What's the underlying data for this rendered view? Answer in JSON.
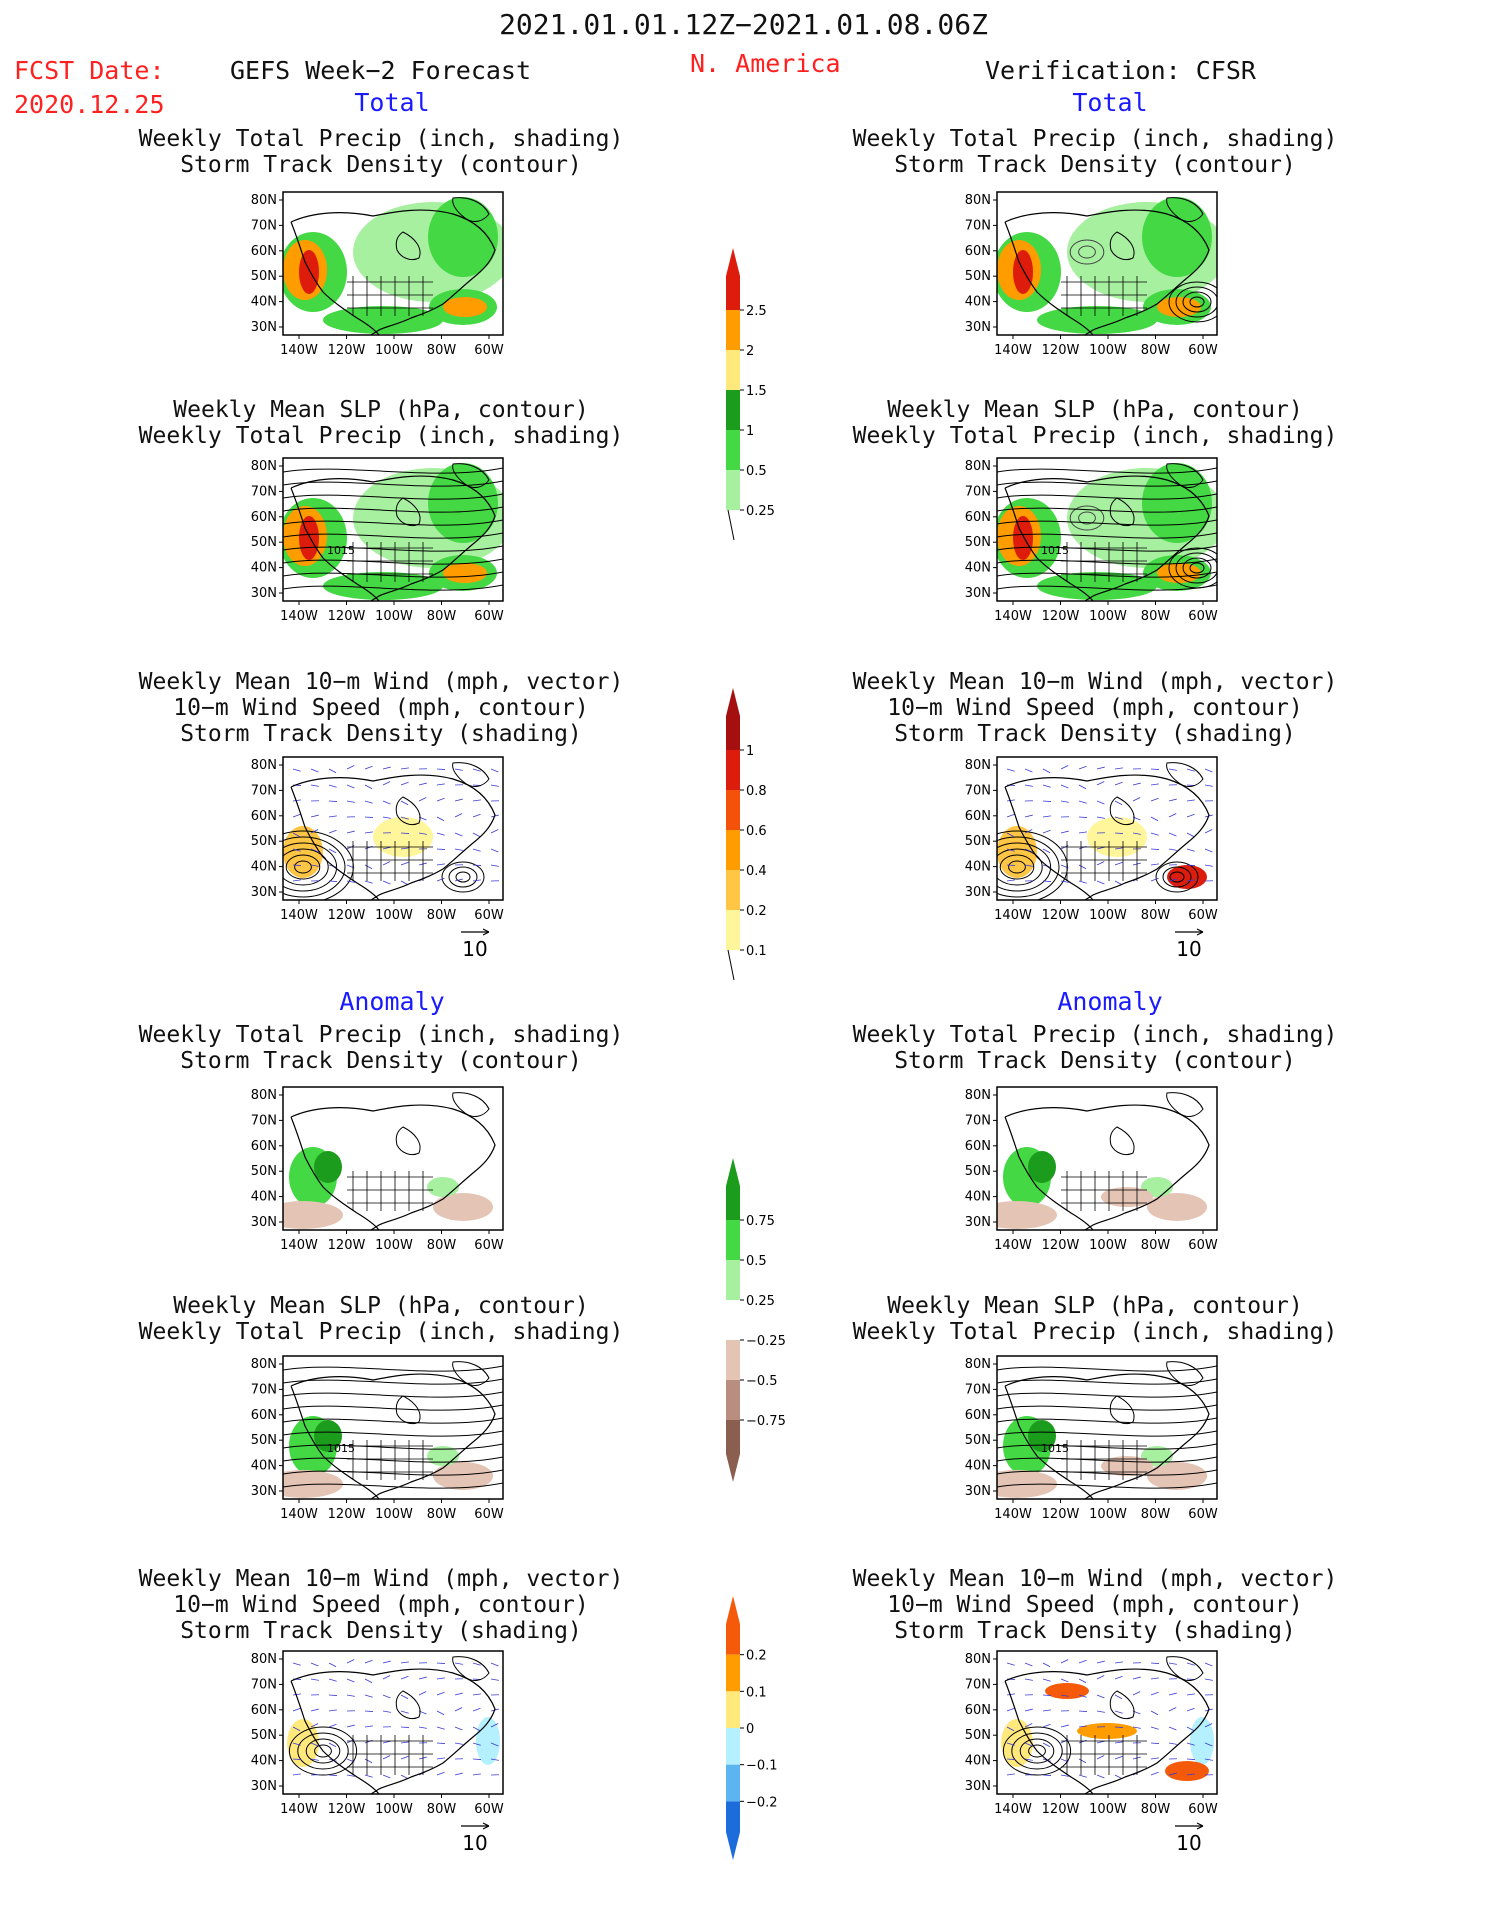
{
  "header": {
    "period": "2021.01.01.12Z−2021.01.08.06Z",
    "fcst_label": "FCST Date:",
    "fcst_date": "2020.12.25",
    "left_title": "GEFS Week−2 Forecast",
    "region": "N. America",
    "right_title": "Verification: CFSR"
  },
  "sections": {
    "total": "Total",
    "anomaly": "Anomaly"
  },
  "titles": {
    "precip_storm": [
      "Weekly Total Precip (inch, shading)",
      "Storm Track Density (contour)"
    ],
    "slp_precip": [
      "Weekly Mean SLP (hPa, contour)",
      "Weekly Total Precip (inch, shading)"
    ],
    "wind_storm": [
      "Weekly Mean 10−m Wind (mph, vector)",
      "10−m Wind Speed (mph, contour)",
      "Storm Track Density (shading)"
    ]
  },
  "axes": {
    "lat": [
      "80N",
      "70N",
      "60N",
      "50N",
      "40N",
      "30N"
    ],
    "lon": [
      "140W",
      "120W",
      "100W",
      "80W",
      "60W"
    ]
  },
  "contour_labels": {
    "slp": "1015"
  },
  "vector_ref": "10",
  "colorbars": {
    "precip_total": {
      "labels": [
        "2.5",
        "2",
        "1.5",
        "1",
        "0.5",
        "0.25"
      ],
      "colors": [
        "#dd1c0c",
        "#ff9c00",
        "#ffe97d",
        "#1c9c1c",
        "#44d844",
        "#a6f0a0"
      ]
    },
    "storm_total": {
      "labels": [
        "1",
        "0.8",
        "0.6",
        "0.4",
        "0.2",
        "0.1"
      ],
      "colors": [
        "#a50f0f",
        "#dc1c0c",
        "#f4520a",
        "#ff9c00",
        "#ffc544",
        "#fff59a"
      ]
    },
    "precip_anom": {
      "labels": [
        "0.75",
        "0.5",
        "0.25",
        "−0.25",
        "−0.5",
        "−0.75"
      ],
      "colors": [
        "#1c9c1c",
        "#44d844",
        "#a6f0a0",
        "#ffffff",
        "#e4c4b4",
        "#b78e80",
        "#8a5f50"
      ]
    },
    "storm_anom": {
      "labels": [
        "0.2",
        "0.1",
        "0",
        "−0.1",
        "−0.2"
      ],
      "colors": [
        "#f45a0a",
        "#ff9c00",
        "#ffe97d",
        "#b4f0ff",
        "#5cb4f0",
        "#1c6cdc"
      ]
    }
  }
}
